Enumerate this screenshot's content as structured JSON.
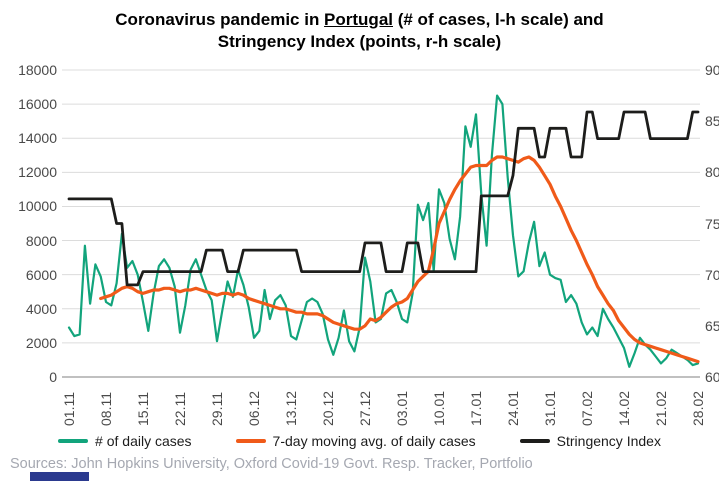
{
  "title": {
    "prefix": "Coronavirus pandemic in ",
    "country": "Portugal",
    "suffix": " (# of cases, l-h scale) and",
    "line2": "Stringency Index (points, r-h scale)"
  },
  "sources": "Sources: John Hopkins University, Oxford Covid-19 Govt. Resp. Tracker, Portfolio",
  "colors": {
    "daily_cases": "#12a47c",
    "moving_avg": "#f05a19",
    "stringency": "#1d1d1b",
    "grid": "#dcdcdc",
    "axis_line": "#9a9a9a",
    "tick_text": "#4a4a4a",
    "title_text": "#000000",
    "sources_text": "#a5a8b1",
    "logo_blue": "#2b3a8f"
  },
  "axes": {
    "left_ticks": [
      "18000",
      "16000",
      "14000",
      "12000",
      "10000",
      "8000",
      "6000",
      "4000",
      "2000",
      "0"
    ],
    "right_ticks": [
      "90",
      "85",
      "80",
      "75",
      "70",
      "65",
      "60"
    ],
    "x_ticks": [
      "01.11",
      "08.11",
      "15.11",
      "22.11",
      "29.11",
      "06.12",
      "13.12",
      "20.12",
      "27.12",
      "03.01",
      "10.01",
      "17.01",
      "24.01",
      "31.01",
      "07.02",
      "14.02",
      "21.02",
      "28.02"
    ]
  },
  "legend": [
    {
      "label": "# of daily cases",
      "color_key": "daily_cases",
      "icon": "daily-cases-legend-line-icon"
    },
    {
      "label": "7-day moving avg. of daily cases",
      "color_key": "moving_avg",
      "icon": "moving-avg-legend-line-icon"
    },
    {
      "label": "Stringency Index",
      "color_key": "stringency",
      "icon": "stringency-legend-line-icon"
    }
  ],
  "chart_data": {
    "type": "line",
    "title": "Coronavirus pandemic in Portugal (# of cases, l-h scale) and Stringency Index (points, r-h scale)",
    "grid": "horizontal",
    "legend_position": "bottom",
    "left_axis": {
      "min": 0,
      "max": 18000,
      "step": 2000
    },
    "right_axis": {
      "min": 60,
      "max": 90,
      "step": 5
    },
    "x": [
      "01.11",
      "02.11",
      "03.11",
      "04.11",
      "05.11",
      "06.11",
      "07.11",
      "08.11",
      "09.11",
      "10.11",
      "11.11",
      "12.11",
      "13.11",
      "14.11",
      "15.11",
      "16.11",
      "17.11",
      "18.11",
      "19.11",
      "20.11",
      "21.11",
      "22.11",
      "23.11",
      "24.11",
      "25.11",
      "26.11",
      "27.11",
      "28.11",
      "29.11",
      "30.11",
      "01.12",
      "02.12",
      "03.12",
      "04.12",
      "05.12",
      "06.12",
      "07.12",
      "08.12",
      "09.12",
      "10.12",
      "11.12",
      "12.12",
      "13.12",
      "14.12",
      "15.12",
      "16.12",
      "17.12",
      "18.12",
      "19.12",
      "20.12",
      "21.12",
      "22.12",
      "23.12",
      "24.12",
      "25.12",
      "26.12",
      "27.12",
      "28.12",
      "29.12",
      "30.12",
      "31.12",
      "01.01",
      "02.01",
      "03.01",
      "04.01",
      "05.01",
      "06.01",
      "07.01",
      "08.01",
      "09.01",
      "10.01",
      "11.01",
      "12.01",
      "13.01",
      "14.01",
      "15.01",
      "16.01",
      "17.01",
      "18.01",
      "19.01",
      "20.01",
      "21.01",
      "22.01",
      "23.01",
      "24.01",
      "25.01",
      "26.01",
      "27.01",
      "28.01",
      "29.01",
      "30.01",
      "31.01",
      "01.02",
      "02.02",
      "03.02",
      "04.02",
      "05.02",
      "06.02",
      "07.02",
      "08.02",
      "09.02",
      "10.02",
      "11.02",
      "12.02",
      "13.02",
      "14.02",
      "15.02",
      "16.02",
      "17.02",
      "18.02",
      "19.02",
      "20.02",
      "21.02",
      "22.02",
      "23.02",
      "24.02",
      "25.02",
      "26.02",
      "27.02",
      "28.02"
    ],
    "series": [
      {
        "name": "# of daily cases",
        "axis": "left",
        "color": "#12a47c",
        "values": [
          2900,
          2400,
          2500,
          7700,
          4300,
          6600,
          5900,
          4400,
          4200,
          5500,
          8400,
          6400,
          6800,
          6000,
          4400,
          2700,
          4900,
          6500,
          6900,
          6400,
          5300,
          2600,
          4200,
          6300,
          6900,
          6000,
          5100,
          4500,
          2100,
          3900,
          5600,
          4700,
          6300,
          5400,
          4100,
          2300,
          2700,
          5100,
          3400,
          4500,
          4800,
          4200,
          2400,
          2200,
          3300,
          4400,
          4600,
          4400,
          3700,
          2200,
          1300,
          2300,
          3900,
          2100,
          1500,
          2900,
          7000,
          5600,
          3200,
          3400,
          4900,
          5100,
          4400,
          3400,
          3200,
          4900,
          10100,
          9200,
          10200,
          6200,
          11000,
          10200,
          8100,
          6900,
          9400,
          14700,
          13500,
          15400,
          10700,
          7700,
          13000,
          16500,
          16000,
          11700,
          8300,
          5900,
          6200,
          7900,
          9100,
          6500,
          7300,
          6000,
          5800,
          5700,
          4400,
          4800,
          4300,
          3200,
          2500,
          2900,
          2400,
          4000,
          3400,
          2900,
          2300,
          1700,
          600,
          1400,
          2300,
          1900,
          1600,
          1200,
          800,
          1100,
          1600,
          1400,
          1200,
          1000,
          700,
          800
        ]
      },
      {
        "name": "7-day moving avg. of daily cases",
        "axis": "left",
        "color": "#f05a19",
        "values": [
          null,
          null,
          null,
          null,
          null,
          null,
          4600,
          4700,
          4800,
          5000,
          5200,
          5300,
          5200,
          5000,
          4900,
          5000,
          5100,
          5100,
          5200,
          5200,
          5100,
          5000,
          5100,
          5100,
          5200,
          5100,
          5000,
          4900,
          4800,
          4900,
          4900,
          4800,
          4900,
          4800,
          4600,
          4500,
          4400,
          4300,
          4200,
          4100,
          4000,
          4000,
          3900,
          3800,
          3800,
          3700,
          3700,
          3700,
          3600,
          3400,
          3200,
          3100,
          3000,
          2900,
          2800,
          2800,
          3000,
          3400,
          3300,
          3500,
          3800,
          4100,
          4300,
          4400,
          4600,
          5100,
          5600,
          5900,
          6200,
          7500,
          9000,
          9700,
          10400,
          11000,
          11500,
          11900,
          12300,
          12400,
          12400,
          12400,
          12700,
          12900,
          12900,
          12800,
          12700,
          12600,
          12800,
          12900,
          12700,
          12300,
          11800,
          11300,
          10600,
          10000,
          9300,
          8600,
          8000,
          7300,
          6600,
          6000,
          5300,
          4800,
          4300,
          3900,
          3300,
          2900,
          2500,
          2200,
          2000,
          1900,
          1800,
          1700,
          1600,
          1500,
          1400,
          1300,
          1200,
          1100,
          1000,
          900
        ]
      },
      {
        "name": "Stringency Index",
        "axis": "right",
        "color": "#1d1d1b",
        "values": [
          77.4,
          77.4,
          77.4,
          77.4,
          77.4,
          77.4,
          77.4,
          77.4,
          77.4,
          75,
          75,
          69,
          69,
          69,
          70.3,
          70.3,
          70.3,
          70.3,
          70.3,
          70.3,
          70.3,
          70.3,
          70.3,
          70.3,
          70.3,
          70.3,
          72.4,
          72.4,
          72.4,
          72.4,
          70.3,
          70.3,
          70.3,
          72.4,
          72.4,
          72.4,
          72.4,
          72.4,
          72.4,
          72.4,
          72.4,
          72.4,
          72.4,
          72.4,
          70.3,
          70.3,
          70.3,
          70.3,
          70.3,
          70.3,
          70.3,
          70.3,
          70.3,
          70.3,
          70.3,
          70.3,
          73.1,
          73.1,
          73.1,
          73.1,
          70.3,
          70.3,
          70.3,
          70.3,
          73.1,
          73.1,
          73.1,
          70.3,
          70.3,
          70.3,
          70.3,
          70.3,
          70.3,
          70.3,
          70.3,
          70.3,
          70.3,
          70.3,
          77.7,
          77.7,
          77.7,
          77.7,
          77.7,
          77.7,
          79.7,
          84.3,
          84.3,
          84.3,
          84.3,
          81.5,
          81.5,
          84.3,
          84.3,
          84.3,
          84.3,
          81.5,
          81.5,
          81.5,
          85.9,
          85.9,
          83.3,
          83.3,
          83.3,
          83.3,
          83.3,
          85.9,
          85.9,
          85.9,
          85.9,
          85.9,
          83.3,
          83.3,
          83.3,
          83.3,
          83.3,
          83.3,
          83.3,
          83.3,
          85.9,
          85.9
        ]
      }
    ]
  }
}
